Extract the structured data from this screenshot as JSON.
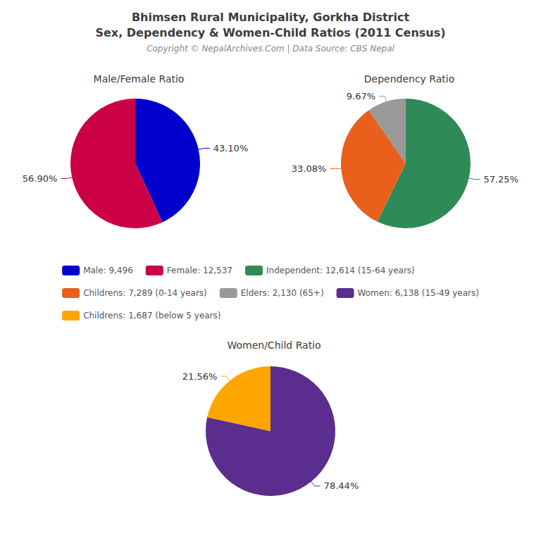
{
  "title": "Bhimsen Rural Municipality, Gorkha District\nSex, Dependency & Women-Child Ratios (2011 Census)",
  "subtitle": "Copyright © NepalArchives.Com | Data Source: CBS Nepal",
  "legend": "center",
  "chart_data": [
    {
      "type": "pie",
      "title": "Male/Female Ratio",
      "categories": [
        "Male: 9,496",
        "Female: 12,537"
      ],
      "values": [
        43.1,
        56.9
      ],
      "value_labels": [
        "43.10%",
        "56.90%"
      ],
      "colors": [
        "#0000CC",
        "#CC0044"
      ],
      "data_labels": true
    },
    {
      "type": "pie",
      "title": "Dependency Ratio",
      "categories": [
        "Independent: 12,614 (15-64 years)",
        "Childrens: 7,289 (0-14 years)",
        "Elders: 2,130 (65+)"
      ],
      "values": [
        57.25,
        33.08,
        9.67
      ],
      "value_labels": [
        "57.25%",
        "33.08%",
        "9.67%"
      ],
      "colors": [
        "#2E8B57",
        "#E8601C",
        "#999999"
      ],
      "data_labels": true
    },
    {
      "type": "pie",
      "title": "Women/Child Ratio",
      "categories": [
        "Women: 6,138 (15-49 years)",
        "Childrens: 1,687 (below 5 years)"
      ],
      "values": [
        78.44,
        21.56
      ],
      "value_labels": [
        "78.44%",
        "21.56%"
      ],
      "colors": [
        "#5B2D8E",
        "#FFA500"
      ],
      "data_labels": true
    }
  ]
}
